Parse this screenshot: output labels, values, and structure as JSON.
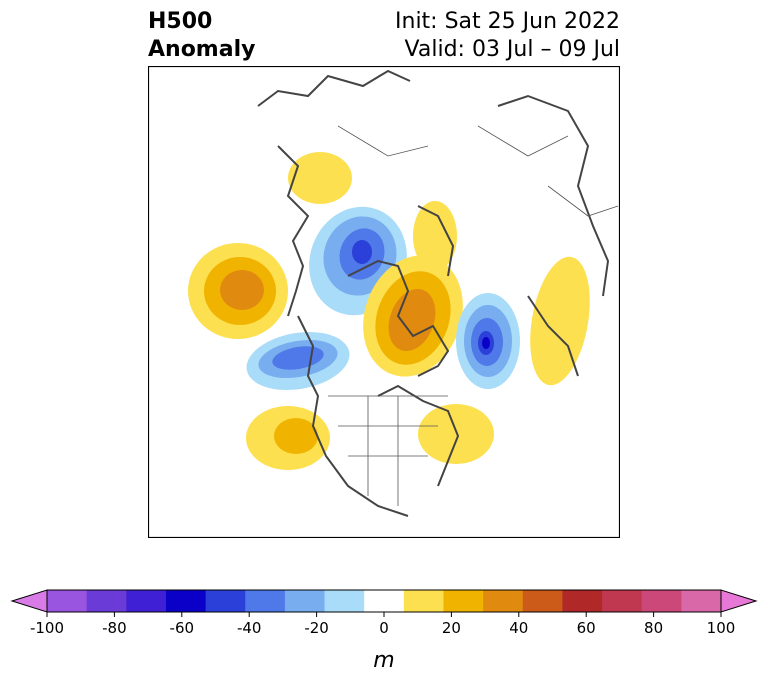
{
  "title": {
    "left_line1": "H500",
    "left_line2": "Anomaly",
    "right_line1": "Init: Sat 25 Jun 2022",
    "right_line2": "Valid: 03 Jul – 09 Jul"
  },
  "colorbar": {
    "unit": "m",
    "ticks": [
      "-100",
      "-80",
      "-60",
      "-40",
      "-20",
      "0",
      "20",
      "40",
      "60",
      "80",
      "100"
    ],
    "colors": [
      "#d97be6",
      "#9a55e0",
      "#6a3bd6",
      "#3f20d4",
      "#0a00c8",
      "#2a40d8",
      "#4f78e8",
      "#78aef0",
      "#a9dcf8",
      "#ffffff",
      "#fde050",
      "#f0b400",
      "#e08a10",
      "#cc5a18",
      "#b02828",
      "#c03850",
      "#cc4878",
      "#d868a8",
      "#e878d8"
    ]
  },
  "icons": {
    "map": "geographic-basemap-north-america",
    "arrows": "colorbar-extend-triangles"
  }
}
